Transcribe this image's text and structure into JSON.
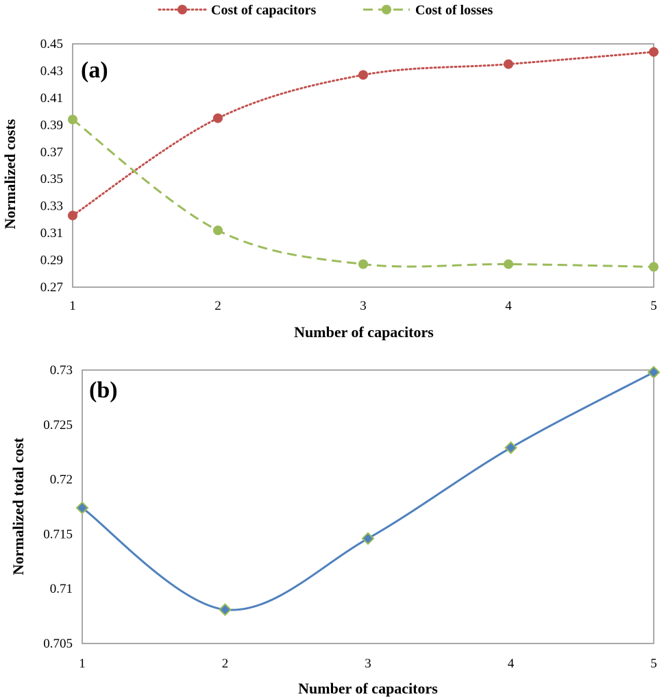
{
  "chart_data": [
    {
      "type": "line",
      "panel_label": "(a)",
      "xlabel": "Number of capacitors",
      "ylabel": "Normalized costs",
      "x": [
        1,
        2,
        3,
        4,
        5
      ],
      "xticks": [
        "1",
        "2",
        "3",
        "4",
        "5"
      ],
      "ylim": [
        0.27,
        0.45
      ],
      "yticks": [
        "0.27",
        "0.29",
        "0.31",
        "0.33",
        "0.35",
        "0.37",
        "0.39",
        "0.41",
        "0.43",
        "0.45"
      ],
      "grid": false,
      "legend_placement": "top",
      "series": [
        {
          "name": "Cost of capacitors",
          "values": [
            0.323,
            0.395,
            0.427,
            0.435,
            0.444
          ],
          "color": "#c0504d",
          "line_style": "dotted",
          "marker": "circle"
        },
        {
          "name": "Cost of losses",
          "values": [
            0.394,
            0.312,
            0.287,
            0.287,
            0.285
          ],
          "color": "#9bbb59",
          "line_style": "dashed",
          "marker": "circle"
        }
      ]
    },
    {
      "type": "line",
      "panel_label": "(b)",
      "xlabel": "Number of capacitors",
      "ylabel": "Normalized total cost",
      "x": [
        1,
        2,
        3,
        4,
        5
      ],
      "xticks": [
        "1",
        "2",
        "3",
        "4",
        "5"
      ],
      "ylim": [
        0.705,
        0.73
      ],
      "yticks": [
        "0.705",
        "0.71",
        "0.715",
        "0.72",
        "0.725",
        "0.73"
      ],
      "grid": false,
      "series": [
        {
          "values": [
            0.7174,
            0.7081,
            0.7146,
            0.7229,
            0.7298
          ],
          "color": "#4f81bd",
          "marker_fill": "#4f81bd",
          "marker_stroke": "#9bbb59",
          "line_style": "solid",
          "marker": "diamond"
        }
      ]
    }
  ]
}
